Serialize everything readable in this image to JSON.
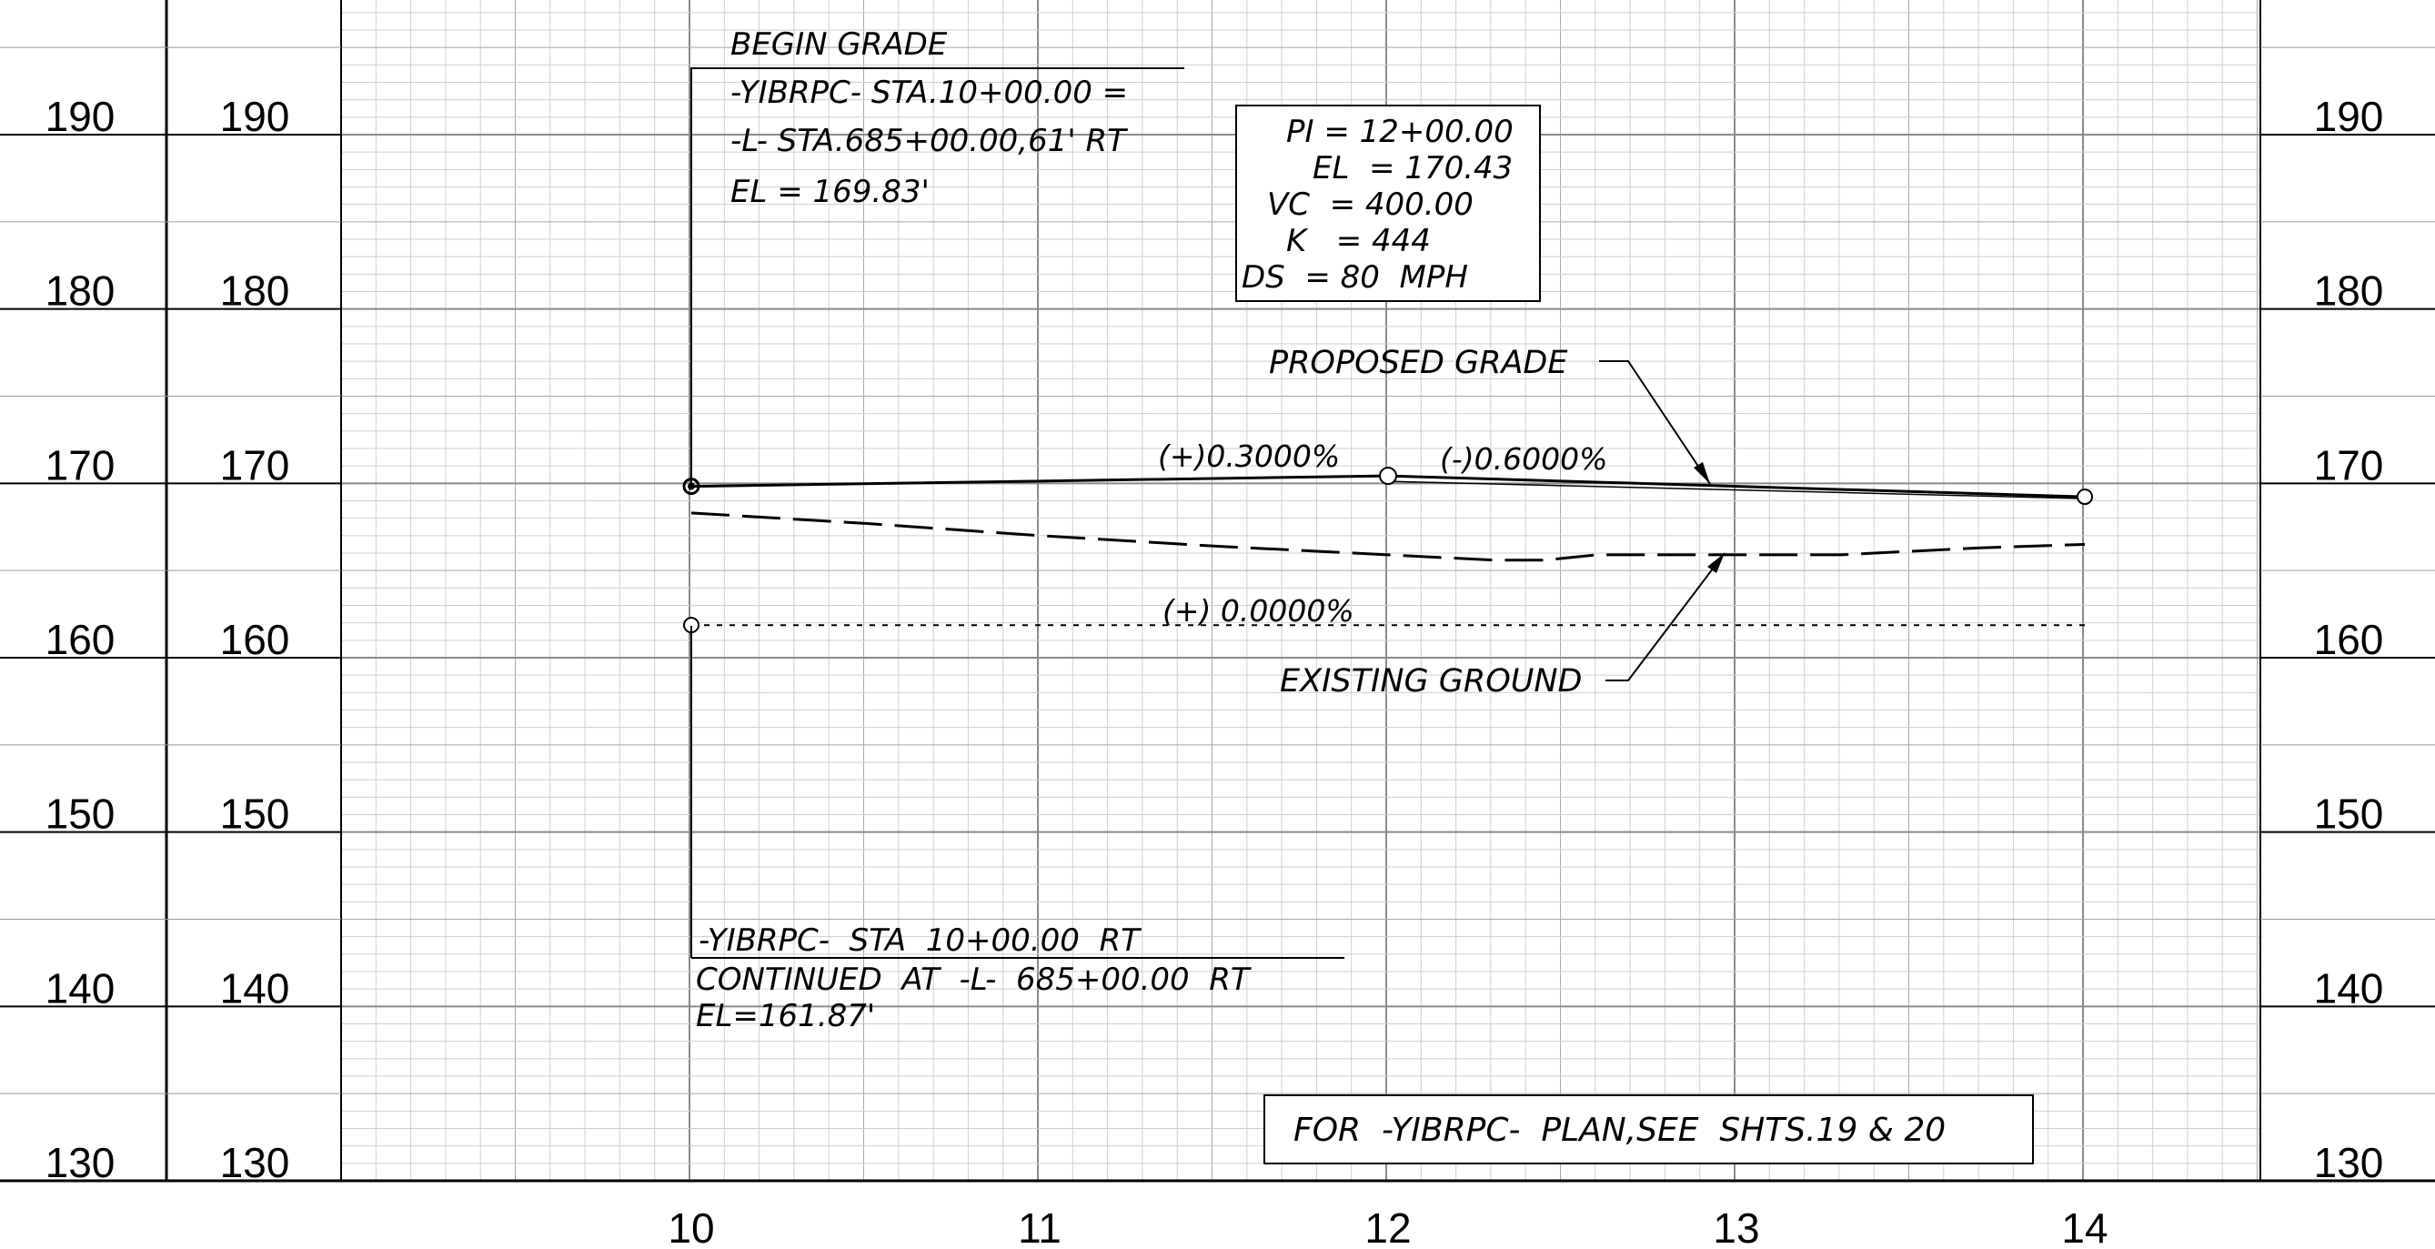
{
  "chart_data": {
    "type": "line",
    "x_ticks": [
      "10",
      "11",
      "12",
      "13",
      "14"
    ],
    "y_ticks_left": [
      "190",
      "180",
      "170",
      "160",
      "150",
      "140",
      "130"
    ],
    "y_ticks_mid": [
      "190",
      "180",
      "170",
      "160",
      "150",
      "140",
      "130"
    ],
    "y_ticks_right": [
      "190",
      "180",
      "170",
      "160",
      "150",
      "140",
      "130"
    ],
    "xlim": [
      10,
      14
    ],
    "ylim": [
      130,
      190
    ],
    "grid": true,
    "series": [
      {
        "name": "PROPOSED GRADE",
        "style": "solid",
        "x": [
          10,
          12,
          14
        ],
        "y": [
          169.83,
          170.43,
          169.23
        ]
      },
      {
        "name": "EXISTING GROUND",
        "style": "dashed",
        "x": [
          10,
          10.5,
          11,
          11.5,
          12,
          12.3,
          12.45,
          12.6,
          12.9,
          13.3,
          13.7,
          14
        ],
        "y": [
          168.3,
          167.7,
          167.0,
          166.4,
          165.9,
          165.6,
          165.6,
          165.9,
          165.9,
          165.9,
          166.3,
          166.5
        ]
      },
      {
        "name": "",
        "style": "dotted",
        "x": [
          10,
          14
        ],
        "y": [
          161.87,
          161.87
        ]
      }
    ]
  },
  "annotations": {
    "begin_grade": {
      "title": "BEGIN GRADE",
      "line1": "-YIBRPC-  STA.10+00.00  =",
      "line2": "-L-  STA.685+00.00,61' RT",
      "line3": "EL  =  169.83'"
    },
    "pi_box": {
      "line1": "PI = 12+00.00",
      "line2": "EL  = 170.43",
      "line3": "VC  = 400.00",
      "line4": "K   = 444",
      "line5": "DS  = 80  MPH"
    },
    "proposed_grade_label": "PROPOSED GRADE",
    "existing_ground_label": "EXISTING GROUND",
    "grade_left": "(+)0.3000%",
    "grade_right": "(-)0.6000%",
    "grade_flat": "(+) 0.0000%",
    "continued": {
      "line1": "-YIBRPC-  STA  10+00.00  RT",
      "line2": "CONTINUED  AT  -L-  685+00.00  RT",
      "line3": "EL=161.87'"
    },
    "plan_note": "FOR  -YIBRPC-  PLAN,SEE  SHTS.19 & 20"
  }
}
